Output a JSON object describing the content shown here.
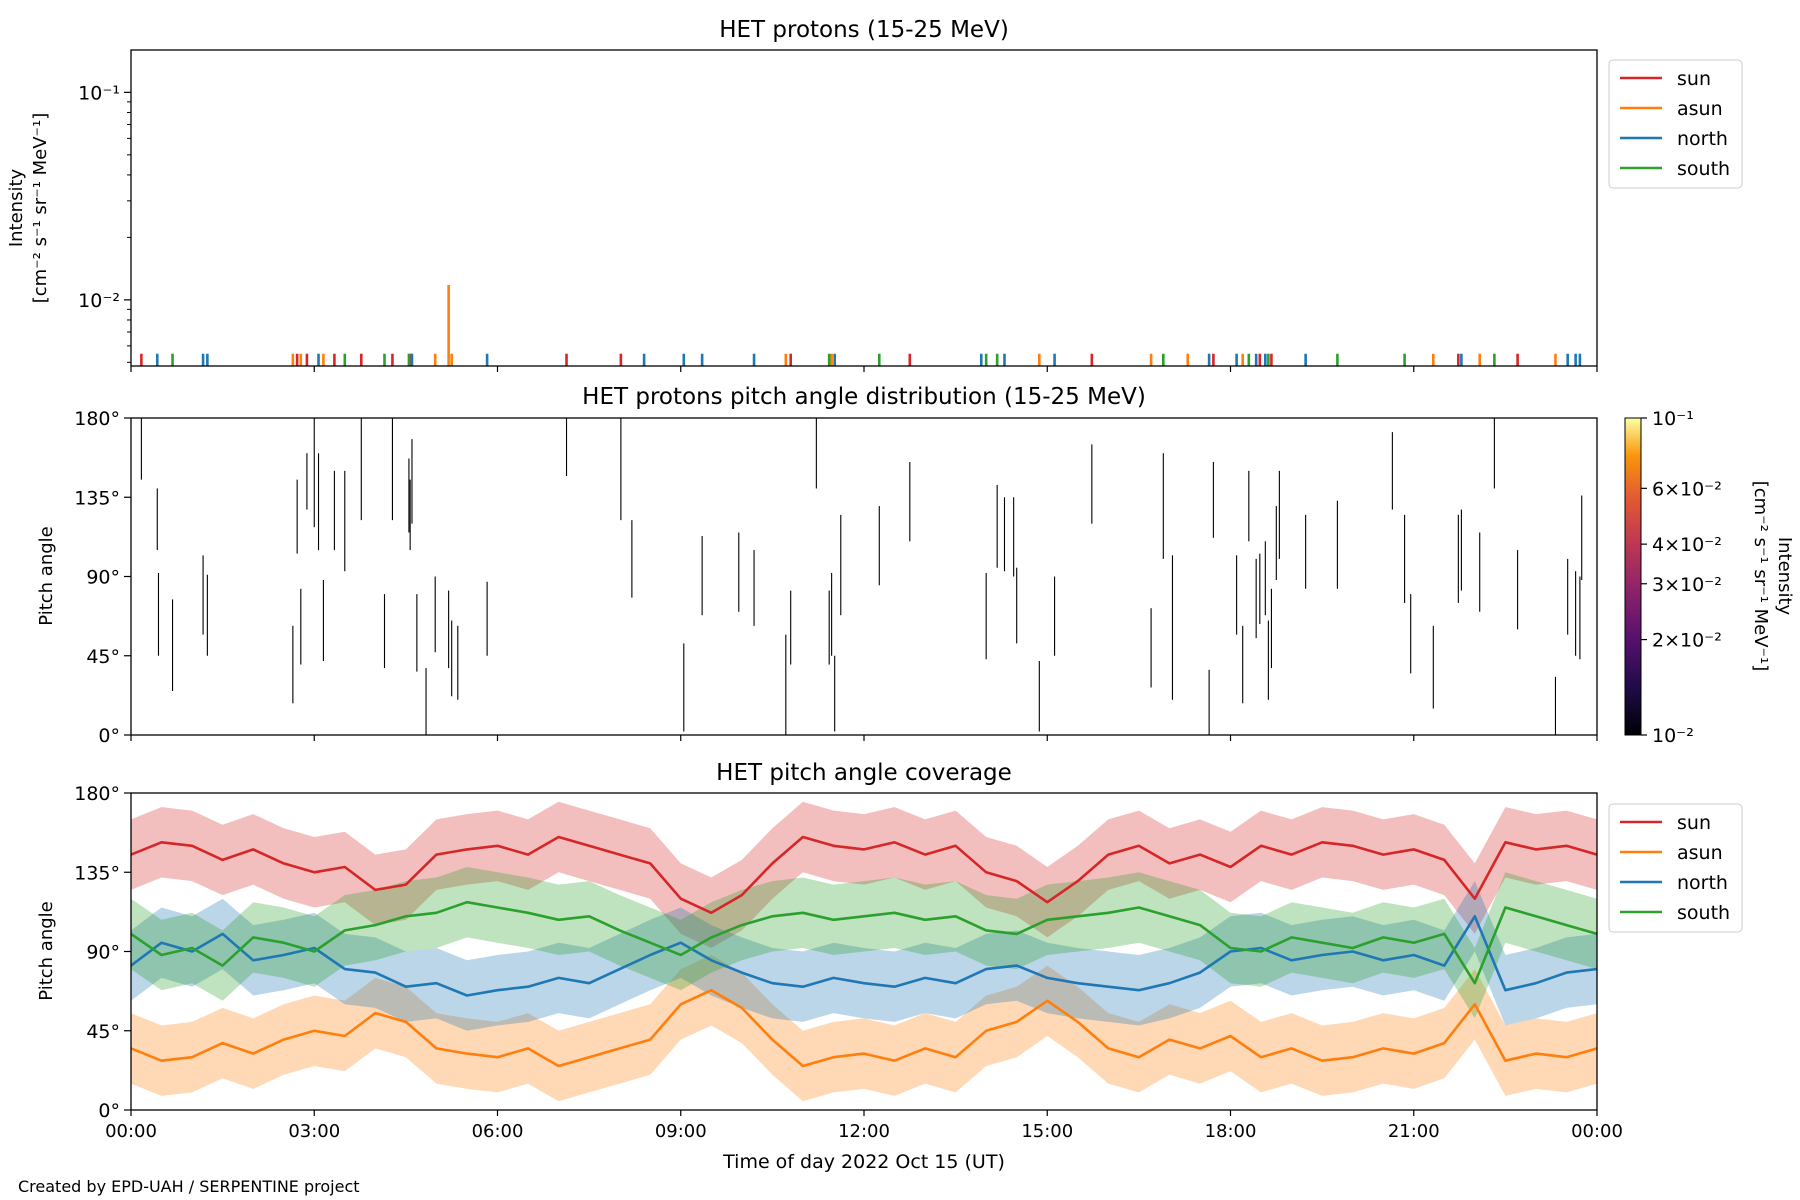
{
  "credit": "Created by EPD-UAH / SERPENTINE project",
  "colors": {
    "sun": "#d62728",
    "asun": "#ff7f0e",
    "north": "#1f77b4",
    "south": "#2ca02c"
  },
  "chart_data": [
    {
      "type": "bar",
      "title": "HET protons (15-25 MeV)",
      "ylabel_lines": [
        "Intensity",
        "[cm⁻² s⁻¹ sr⁻¹ MeV⁻¹]"
      ],
      "yscale": "log",
      "ylim": [
        0.0048,
        0.16
      ],
      "y_ticks": [
        {
          "value": 0.01,
          "label": "10⁻²"
        },
        {
          "value": 0.1,
          "label": "10⁻¹"
        }
      ],
      "xlim_hours": [
        0,
        24
      ],
      "legend": {
        "position": "outside-right",
        "entries": [
          "sun",
          "asun",
          "north",
          "south"
        ]
      },
      "series": [
        {
          "name": "sun",
          "hours": [
            0.17,
            2.72,
            2.88,
            3.33,
            3.77,
            4.28,
            4.57,
            7.13,
            8.02,
            10.8,
            12.75,
            15.73,
            17.72,
            18.48,
            18.67,
            21.73,
            22.7
          ],
          "values": [
            0.0055,
            0.0055,
            0.0055,
            0.0055,
            0.0055,
            0.0055,
            0.0055,
            0.0055,
            0.0055,
            0.0055,
            0.0055,
            0.0055,
            0.0055,
            0.0055,
            0.0055,
            0.0055,
            0.0055
          ]
        },
        {
          "name": "asun",
          "hours": [
            2.65,
            2.78,
            3.15,
            4.98,
            5.2,
            5.25,
            10.72,
            11.47,
            14.87,
            16.7,
            17.3,
            18.2,
            21.32,
            22.08,
            23.32
          ],
          "values": [
            0.0055,
            0.0055,
            0.0055,
            0.0055,
            0.0118,
            0.0055,
            0.0055,
            0.0055,
            0.0055,
            0.0055,
            0.0055,
            0.0055,
            0.0055,
            0.0055,
            0.0055
          ]
        },
        {
          "name": "north",
          "hours": [
            0.43,
            1.18,
            1.25,
            3.07,
            4.6,
            5.83,
            8.4,
            9.05,
            9.35,
            10.2,
            11.52,
            13.92,
            14.3,
            15.12,
            17.65,
            18.1,
            18.42,
            18.57,
            19.23,
            21.78,
            23.52,
            23.65,
            23.72
          ],
          "values": [
            0.0055,
            0.0055,
            0.0055,
            0.0055,
            0.0055,
            0.0055,
            0.0055,
            0.0055,
            0.0055,
            0.0055,
            0.0055,
            0.0055,
            0.0055,
            0.0055,
            0.0055,
            0.0055,
            0.0055,
            0.0055,
            0.0055,
            0.0055,
            0.0055,
            0.0055,
            0.0055
          ]
        },
        {
          "name": "south",
          "hours": [
            0.68,
            3.5,
            4.15,
            4.55,
            11.43,
            12.25,
            14.0,
            14.18,
            16.9,
            18.3,
            18.62,
            19.75,
            20.85,
            22.32
          ],
          "values": [
            0.0055,
            0.0055,
            0.0055,
            0.0055,
            0.0055,
            0.0055,
            0.0055,
            0.0055,
            0.0055,
            0.0055,
            0.0055,
            0.0055,
            0.0055,
            0.0055
          ]
        }
      ]
    },
    {
      "type": "heatmap",
      "title": "HET protons pitch angle distribution (15-25 MeV)",
      "ylabel": "Pitch angle",
      "ylim_deg": [
        0,
        180
      ],
      "y_ticks": [
        "0°",
        "45°",
        "90°",
        "135°",
        "180°"
      ],
      "xlim_hours": [
        0,
        24
      ],
      "colorbar": {
        "label_lines": [
          "Intensity",
          "[cm⁻² s⁻¹ sr⁻¹ MeV⁻¹]"
        ],
        "scale": "log",
        "range": [
          0.01,
          0.1
        ],
        "ticks": [
          {
            "value": 0.01,
            "label": "10⁻²"
          },
          {
            "value": 0.02,
            "label": "2×10⁻²"
          },
          {
            "value": 0.03,
            "label": "3×10⁻²"
          },
          {
            "value": 0.04,
            "label": "4×10⁻²"
          },
          {
            "value": 0.06,
            "label": "6×10⁻²"
          },
          {
            "value": 0.1,
            "label": "10⁻¹"
          }
        ]
      },
      "segments": [
        {
          "t": 0.17,
          "lo": 145,
          "hi": 180
        },
        {
          "t": 0.43,
          "lo": 105,
          "hi": 140
        },
        {
          "t": 0.45,
          "lo": 45,
          "hi": 92
        },
        {
          "t": 0.68,
          "lo": 25,
          "hi": 77
        },
        {
          "t": 1.18,
          "lo": 57,
          "hi": 102
        },
        {
          "t": 1.25,
          "lo": 45,
          "hi": 91
        },
        {
          "t": 2.65,
          "lo": 18,
          "hi": 62
        },
        {
          "t": 2.72,
          "lo": 103,
          "hi": 145
        },
        {
          "t": 2.78,
          "lo": 40,
          "hi": 83
        },
        {
          "t": 2.88,
          "lo": 128,
          "hi": 160
        },
        {
          "t": 3.0,
          "lo": 118,
          "hi": 180
        },
        {
          "t": 3.07,
          "lo": 105,
          "hi": 160
        },
        {
          "t": 3.15,
          "lo": 42,
          "hi": 88
        },
        {
          "t": 3.33,
          "lo": 105,
          "hi": 150
        },
        {
          "t": 3.5,
          "lo": 93,
          "hi": 150
        },
        {
          "t": 3.77,
          "lo": 122,
          "hi": 180
        },
        {
          "t": 4.15,
          "lo": 38,
          "hi": 80
        },
        {
          "t": 4.28,
          "lo": 122,
          "hi": 180
        },
        {
          "t": 4.55,
          "lo": 115,
          "hi": 157
        },
        {
          "t": 4.6,
          "lo": 120,
          "hi": 168
        },
        {
          "t": 4.57,
          "lo": 105,
          "hi": 145
        },
        {
          "t": 4.68,
          "lo": 36,
          "hi": 80
        },
        {
          "t": 4.83,
          "lo": 0,
          "hi": 38
        },
        {
          "t": 4.98,
          "lo": 47,
          "hi": 90
        },
        {
          "t": 5.2,
          "lo": 38,
          "hi": 82
        },
        {
          "t": 5.25,
          "lo": 22,
          "hi": 65
        },
        {
          "t": 5.35,
          "lo": 20,
          "hi": 62
        },
        {
          "t": 5.83,
          "lo": 45,
          "hi": 87
        },
        {
          "t": 7.13,
          "lo": 147,
          "hi": 180
        },
        {
          "t": 8.02,
          "lo": 122,
          "hi": 180
        },
        {
          "t": 8.2,
          "lo": 78,
          "hi": 122
        },
        {
          "t": 9.05,
          "lo": 2,
          "hi": 52
        },
        {
          "t": 9.35,
          "lo": 68,
          "hi": 113
        },
        {
          "t": 9.95,
          "lo": 70,
          "hi": 115
        },
        {
          "t": 10.2,
          "lo": 62,
          "hi": 105
        },
        {
          "t": 10.72,
          "lo": 0,
          "hi": 57
        },
        {
          "t": 10.8,
          "lo": 40,
          "hi": 82
        },
        {
          "t": 11.22,
          "lo": 140,
          "hi": 180
        },
        {
          "t": 11.43,
          "lo": 40,
          "hi": 82
        },
        {
          "t": 11.52,
          "lo": 2,
          "hi": 45
        },
        {
          "t": 11.62,
          "lo": 68,
          "hi": 125
        },
        {
          "t": 11.47,
          "lo": 45,
          "hi": 92
        },
        {
          "t": 12.25,
          "lo": 85,
          "hi": 130
        },
        {
          "t": 12.75,
          "lo": 110,
          "hi": 155
        },
        {
          "t": 14.0,
          "lo": 43,
          "hi": 92
        },
        {
          "t": 14.18,
          "lo": 95,
          "hi": 142
        },
        {
          "t": 14.3,
          "lo": 93,
          "hi": 135
        },
        {
          "t": 14.45,
          "lo": 90,
          "hi": 135
        },
        {
          "t": 14.5,
          "lo": 52,
          "hi": 95
        },
        {
          "t": 14.87,
          "lo": 2,
          "hi": 42
        },
        {
          "t": 15.12,
          "lo": 45,
          "hi": 90
        },
        {
          "t": 15.73,
          "lo": 120,
          "hi": 165
        },
        {
          "t": 16.7,
          "lo": 27,
          "hi": 72
        },
        {
          "t": 16.9,
          "lo": 100,
          "hi": 160
        },
        {
          "t": 17.05,
          "lo": 20,
          "hi": 102
        },
        {
          "t": 17.65,
          "lo": 0,
          "hi": 37
        },
        {
          "t": 17.72,
          "lo": 112,
          "hi": 155
        },
        {
          "t": 18.1,
          "lo": 57,
          "hi": 102
        },
        {
          "t": 18.2,
          "lo": 18,
          "hi": 62
        },
        {
          "t": 18.3,
          "lo": 110,
          "hi": 150
        },
        {
          "t": 18.42,
          "lo": 55,
          "hi": 100
        },
        {
          "t": 18.48,
          "lo": 63,
          "hi": 103
        },
        {
          "t": 18.57,
          "lo": 68,
          "hi": 110
        },
        {
          "t": 18.62,
          "lo": 20,
          "hi": 65
        },
        {
          "t": 18.67,
          "lo": 38,
          "hi": 83
        },
        {
          "t": 18.75,
          "lo": 88,
          "hi": 130
        },
        {
          "t": 18.8,
          "lo": 100,
          "hi": 150
        },
        {
          "t": 19.23,
          "lo": 83,
          "hi": 125
        },
        {
          "t": 19.75,
          "lo": 83,
          "hi": 133
        },
        {
          "t": 20.65,
          "lo": 128,
          "hi": 172
        },
        {
          "t": 20.85,
          "lo": 75,
          "hi": 125
        },
        {
          "t": 20.95,
          "lo": 35,
          "hi": 80
        },
        {
          "t": 21.32,
          "lo": 15,
          "hi": 62
        },
        {
          "t": 21.73,
          "lo": 75,
          "hi": 125
        },
        {
          "t": 21.78,
          "lo": 82,
          "hi": 128
        },
        {
          "t": 22.08,
          "lo": 70,
          "hi": 115
        },
        {
          "t": 22.32,
          "lo": 140,
          "hi": 180
        },
        {
          "t": 22.7,
          "lo": 60,
          "hi": 105
        },
        {
          "t": 23.32,
          "lo": 0,
          "hi": 33
        },
        {
          "t": 23.52,
          "lo": 57,
          "hi": 100
        },
        {
          "t": 23.65,
          "lo": 45,
          "hi": 93
        },
        {
          "t": 23.72,
          "lo": 43,
          "hi": 90
        },
        {
          "t": 23.75,
          "lo": 88,
          "hi": 136
        }
      ]
    },
    {
      "type": "line",
      "title": "HET pitch angle coverage",
      "ylabel": "Pitch angle",
      "xlabel": "Time of day 2022 Oct 15 (UT)",
      "ylim_deg": [
        0,
        180
      ],
      "y_ticks": [
        "0°",
        "45°",
        "90°",
        "135°",
        "180°"
      ],
      "xlim_hours": [
        0,
        24
      ],
      "x_tick_labels": [
        "00:00",
        "03:00",
        "06:00",
        "09:00",
        "12:00",
        "15:00",
        "18:00",
        "21:00",
        "00:00"
      ],
      "band_halfwidth_deg": 20,
      "legend": {
        "position": "outside-right",
        "entries": [
          "sun",
          "asun",
          "north",
          "south"
        ]
      },
      "series": [
        {
          "name": "sun",
          "hours": [
            0,
            0.5,
            1,
            1.5,
            2,
            2.5,
            3,
            3.5,
            4,
            4.5,
            5,
            5.5,
            6,
            6.5,
            7,
            7.5,
            8,
            8.5,
            9,
            9.5,
            10,
            10.5,
            11,
            11.5,
            12,
            12.5,
            13,
            13.5,
            14,
            14.5,
            15,
            15.5,
            16,
            16.5,
            17,
            17.5,
            18,
            18.5,
            19,
            19.5,
            20,
            20.5,
            21,
            21.5,
            22,
            22.5,
            23,
            23.5,
            24
          ],
          "values": [
            145,
            152,
            150,
            142,
            148,
            140,
            135,
            138,
            125,
            128,
            145,
            148,
            150,
            145,
            155,
            150,
            145,
            140,
            120,
            112,
            122,
            140,
            155,
            150,
            148,
            152,
            145,
            150,
            135,
            130,
            118,
            130,
            145,
            150,
            140,
            145,
            138,
            150,
            145,
            152,
            150,
            145,
            148,
            142,
            120,
            152,
            148,
            150,
            145
          ]
        },
        {
          "name": "asun",
          "hours": [
            0,
            0.5,
            1,
            1.5,
            2,
            2.5,
            3,
            3.5,
            4,
            4.5,
            5,
            5.5,
            6,
            6.5,
            7,
            7.5,
            8,
            8.5,
            9,
            9.5,
            10,
            10.5,
            11,
            11.5,
            12,
            12.5,
            13,
            13.5,
            14,
            14.5,
            15,
            15.5,
            16,
            16.5,
            17,
            17.5,
            18,
            18.5,
            19,
            19.5,
            20,
            20.5,
            21,
            21.5,
            22,
            22.5,
            23,
            23.5,
            24
          ],
          "values": [
            35,
            28,
            30,
            38,
            32,
            40,
            45,
            42,
            55,
            50,
            35,
            32,
            30,
            35,
            25,
            30,
            35,
            40,
            60,
            68,
            58,
            40,
            25,
            30,
            32,
            28,
            35,
            30,
            45,
            50,
            62,
            50,
            35,
            30,
            40,
            35,
            42,
            30,
            35,
            28,
            30,
            35,
            32,
            38,
            60,
            28,
            32,
            30,
            35
          ]
        },
        {
          "name": "north",
          "hours": [
            0,
            0.5,
            1,
            1.5,
            2,
            2.5,
            3,
            3.5,
            4,
            4.5,
            5,
            5.5,
            6,
            6.5,
            7,
            7.5,
            8,
            8.5,
            9,
            9.5,
            10,
            10.5,
            11,
            11.5,
            12,
            12.5,
            13,
            13.5,
            14,
            14.5,
            15,
            15.5,
            16,
            16.5,
            17,
            17.5,
            18,
            18.5,
            19,
            19.5,
            20,
            20.5,
            21,
            21.5,
            22,
            22.5,
            23,
            23.5,
            24
          ],
          "values": [
            82,
            95,
            90,
            100,
            85,
            88,
            92,
            80,
            78,
            70,
            72,
            65,
            68,
            70,
            75,
            72,
            80,
            88,
            95,
            85,
            78,
            72,
            70,
            75,
            72,
            70,
            75,
            72,
            80,
            82,
            75,
            72,
            70,
            68,
            72,
            78,
            90,
            92,
            85,
            88,
            90,
            85,
            88,
            82,
            110,
            68,
            72,
            78,
            80
          ]
        },
        {
          "name": "south",
          "hours": [
            0,
            0.5,
            1,
            1.5,
            2,
            2.5,
            3,
            3.5,
            4,
            4.5,
            5,
            5.5,
            6,
            6.5,
            7,
            7.5,
            8,
            8.5,
            9,
            9.5,
            10,
            10.5,
            11,
            11.5,
            12,
            12.5,
            13,
            13.5,
            14,
            14.5,
            15,
            15.5,
            16,
            16.5,
            17,
            17.5,
            18,
            18.5,
            19,
            19.5,
            20,
            20.5,
            21,
            21.5,
            22,
            22.5,
            23,
            23.5,
            24
          ],
          "values": [
            100,
            88,
            92,
            82,
            98,
            95,
            90,
            102,
            105,
            110,
            112,
            118,
            115,
            112,
            108,
            110,
            102,
            95,
            88,
            98,
            105,
            110,
            112,
            108,
            110,
            112,
            108,
            110,
            102,
            100,
            108,
            110,
            112,
            115,
            110,
            105,
            92,
            90,
            98,
            95,
            92,
            98,
            95,
            100,
            72,
            115,
            110,
            105,
            100
          ]
        }
      ]
    }
  ]
}
